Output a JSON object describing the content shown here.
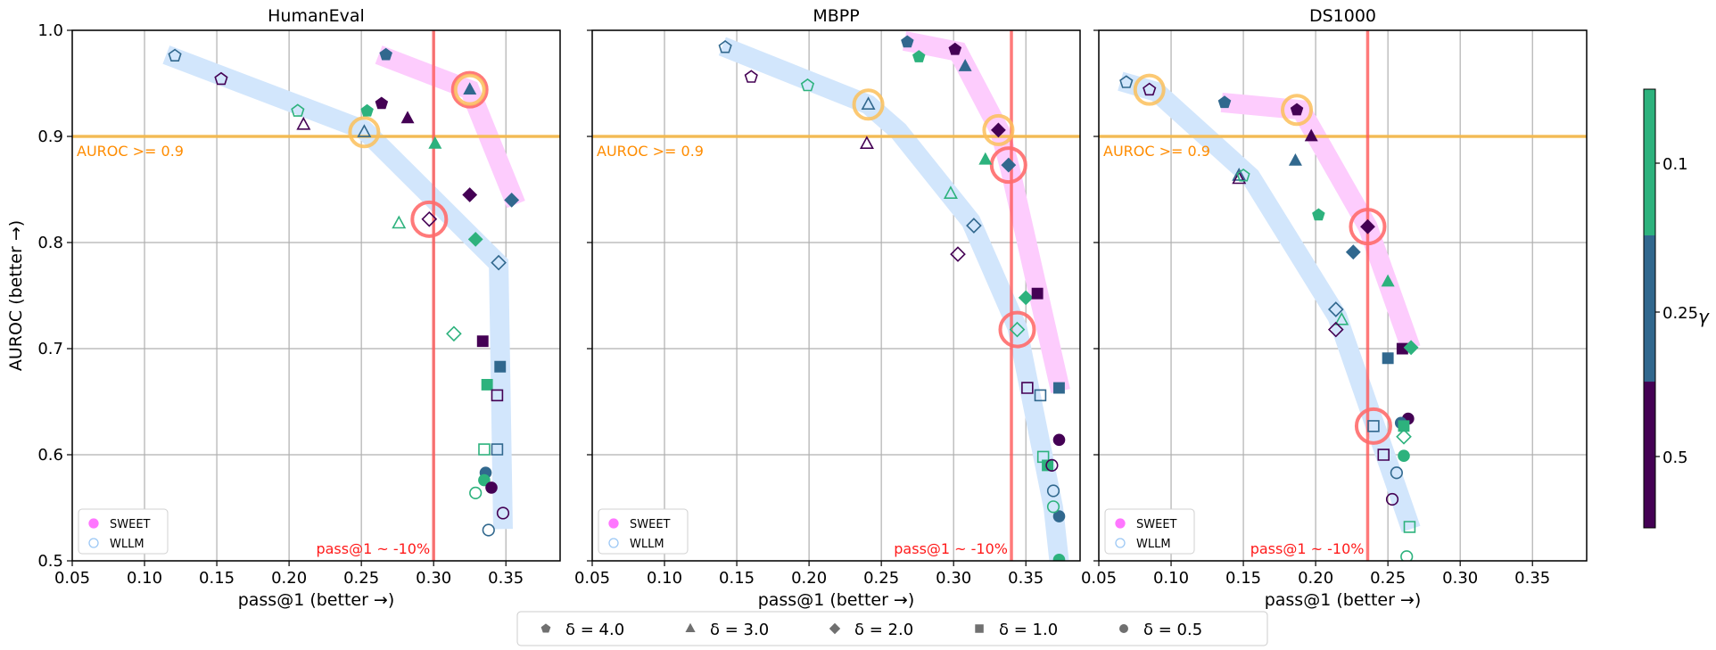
{
  "chart_data": {
    "type": "scatter",
    "ylabel": "AUROC (better →)",
    "xlabel": "pass@1 (better →)",
    "xlim": [
      0.05,
      0.3875
    ],
    "ylim": [
      0.5,
      1.0
    ],
    "xticks": [
      "0.05",
      "0.10",
      "0.15",
      "0.20",
      "0.25",
      "0.30",
      "0.35"
    ],
    "yticks": [
      "0.5",
      "0.6",
      "0.7",
      "0.8",
      "0.9",
      "1.0"
    ],
    "grid": true,
    "threshold_label": "AUROC >= 0.9",
    "threshold_y": 0.9,
    "pass_label": "pass@1 ~ -10%",
    "methods": [
      {
        "name": "SWEET",
        "filled": true,
        "band_color": "#fdccfd",
        "legend_color": "#ff55ff"
      },
      {
        "name": "WLLM",
        "filled": false,
        "band_color": "#d2e6fc",
        "legend_color": "#9cc8f5"
      }
    ],
    "gamma_colors": {
      "0.1": "#2db27d",
      "0.25": "#31688e",
      "0.5": "#440154"
    },
    "colorbar": {
      "label": "γ",
      "ticks": [
        "0.1",
        "0.25",
        "0.5"
      ],
      "colors": [
        "#2db27d",
        "#31688e",
        "#440154"
      ]
    },
    "delta_legend": [
      {
        "delta": 4,
        "marker": "pentagon",
        "label": "δ = 4.0"
      },
      {
        "delta": 3,
        "marker": "triangle",
        "label": "δ = 3.0"
      },
      {
        "delta": 2,
        "marker": "diamond",
        "label": "δ = 2.0"
      },
      {
        "delta": 1,
        "marker": "square",
        "label": "δ = 1.0"
      },
      {
        "delta": 0.5,
        "marker": "circle",
        "label": "δ = 0.5"
      }
    ],
    "panels": [
      {
        "title": "HumanEval",
        "pass_threshold_x": 0.3,
        "bands": {
          "SWEET": [
            [
              0.262,
              0.977
            ],
            [
              0.325,
              0.944
            ],
            [
              0.357,
              0.836
            ]
          ],
          "WLLM": [
            [
              0.115,
              0.977
            ],
            [
              0.252,
              0.906
            ],
            [
              0.345,
              0.78
            ],
            [
              0.348,
              0.53
            ]
          ]
        },
        "highlights": [
          {
            "x": 0.325,
            "y": 0.944,
            "color": "red"
          },
          {
            "x": 0.325,
            "y": 0.944,
            "color": "orange"
          },
          {
            "x": 0.252,
            "y": 0.904,
            "color": "orange"
          },
          {
            "x": 0.297,
            "y": 0.822,
            "color": "red"
          }
        ],
        "points": [
          {
            "m": "SWEET",
            "d": 4,
            "g": 0.25,
            "x": 0.267,
            "y": 0.977
          },
          {
            "m": "SWEET",
            "d": 4,
            "g": 0.5,
            "x": 0.264,
            "y": 0.931
          },
          {
            "m": "SWEET",
            "d": 4,
            "g": 0.1,
            "x": 0.254,
            "y": 0.924
          },
          {
            "m": "SWEET",
            "d": 3,
            "g": 0.5,
            "x": 0.282,
            "y": 0.917
          },
          {
            "m": "SWEET",
            "d": 3,
            "g": 0.25,
            "x": 0.325,
            "y": 0.944
          },
          {
            "m": "SWEET",
            "d": 3,
            "g": 0.1,
            "x": 0.301,
            "y": 0.893
          },
          {
            "m": "SWEET",
            "d": 2,
            "g": 0.5,
            "x": 0.325,
            "y": 0.845
          },
          {
            "m": "SWEET",
            "d": 2,
            "g": 0.1,
            "x": 0.329,
            "y": 0.803
          },
          {
            "m": "SWEET",
            "d": 2,
            "g": 0.25,
            "x": 0.354,
            "y": 0.84
          },
          {
            "m": "SWEET",
            "d": 1,
            "g": 0.5,
            "x": 0.334,
            "y": 0.707
          },
          {
            "m": "SWEET",
            "d": 1,
            "g": 0.1,
            "x": 0.337,
            "y": 0.666
          },
          {
            "m": "SWEET",
            "d": 1,
            "g": 0.25,
            "x": 0.346,
            "y": 0.683
          },
          {
            "m": "SWEET",
            "d": 0.5,
            "g": 0.25,
            "x": 0.336,
            "y": 0.583
          },
          {
            "m": "SWEET",
            "d": 0.5,
            "g": 0.1,
            "x": 0.335,
            "y": 0.576
          },
          {
            "m": "SWEET",
            "d": 0.5,
            "g": 0.5,
            "x": 0.34,
            "y": 0.569
          },
          {
            "m": "WLLM",
            "d": 4,
            "g": 0.25,
            "x": 0.121,
            "y": 0.976
          },
          {
            "m": "WLLM",
            "d": 4,
            "g": 0.5,
            "x": 0.153,
            "y": 0.954
          },
          {
            "m": "WLLM",
            "d": 4,
            "g": 0.1,
            "x": 0.206,
            "y": 0.924
          },
          {
            "m": "WLLM",
            "d": 3,
            "g": 0.5,
            "x": 0.21,
            "y": 0.911
          },
          {
            "m": "WLLM",
            "d": 3,
            "g": 0.25,
            "x": 0.252,
            "y": 0.904
          },
          {
            "m": "WLLM",
            "d": 3,
            "g": 0.1,
            "x": 0.276,
            "y": 0.818
          },
          {
            "m": "WLLM",
            "d": 2,
            "g": 0.5,
            "x": 0.297,
            "y": 0.822
          },
          {
            "m": "WLLM",
            "d": 2,
            "g": 0.1,
            "x": 0.314,
            "y": 0.714
          },
          {
            "m": "WLLM",
            "d": 2,
            "g": 0.25,
            "x": 0.345,
            "y": 0.781
          },
          {
            "m": "WLLM",
            "d": 1,
            "g": 0.5,
            "x": 0.344,
            "y": 0.656
          },
          {
            "m": "WLLM",
            "d": 1,
            "g": 0.1,
            "x": 0.335,
            "y": 0.605
          },
          {
            "m": "WLLM",
            "d": 1,
            "g": 0.25,
            "x": 0.344,
            "y": 0.605
          },
          {
            "m": "WLLM",
            "d": 0.5,
            "g": 0.1,
            "x": 0.329,
            "y": 0.564
          },
          {
            "m": "WLLM",
            "d": 0.5,
            "g": 0.25,
            "x": 0.338,
            "y": 0.529
          },
          {
            "m": "WLLM",
            "d": 0.5,
            "g": 0.5,
            "x": 0.348,
            "y": 0.545
          }
        ]
      },
      {
        "title": "MBPP",
        "pass_threshold_x": 0.34,
        "bands": {
          "SWEET": [
            [
              0.266,
              0.99
            ],
            [
              0.303,
              0.98
            ],
            [
              0.332,
              0.905
            ],
            [
              0.339,
              0.87
            ],
            [
              0.374,
              0.66
            ]
          ],
          "WLLM": [
            [
              0.14,
              0.985
            ],
            [
              0.241,
              0.93
            ],
            [
              0.262,
              0.905
            ],
            [
              0.312,
              0.82
            ],
            [
              0.344,
              0.72
            ],
            [
              0.369,
              0.55
            ],
            [
              0.373,
              0.5
            ]
          ]
        },
        "highlights": [
          {
            "x": 0.241,
            "y": 0.93,
            "color": "orange"
          },
          {
            "x": 0.331,
            "y": 0.906,
            "color": "orange"
          },
          {
            "x": 0.338,
            "y": 0.873,
            "color": "red"
          },
          {
            "x": 0.344,
            "y": 0.718,
            "color": "red"
          }
        ],
        "points": [
          {
            "m": "SWEET",
            "d": 4,
            "g": 0.25,
            "x": 0.268,
            "y": 0.989
          },
          {
            "m": "SWEET",
            "d": 4,
            "g": 0.1,
            "x": 0.276,
            "y": 0.975
          },
          {
            "m": "SWEET",
            "d": 4,
            "g": 0.5,
            "x": 0.301,
            "y": 0.982
          },
          {
            "m": "SWEET",
            "d": 3,
            "g": 0.25,
            "x": 0.308,
            "y": 0.966
          },
          {
            "m": "SWEET",
            "d": 3,
            "g": 0.1,
            "x": 0.322,
            "y": 0.878
          },
          {
            "m": "SWEET",
            "d": 2,
            "g": 0.5,
            "x": 0.331,
            "y": 0.906
          },
          {
            "m": "SWEET",
            "d": 2,
            "g": 0.25,
            "x": 0.338,
            "y": 0.873
          },
          {
            "m": "SWEET",
            "d": 2,
            "g": 0.1,
            "x": 0.35,
            "y": 0.748
          },
          {
            "m": "SWEET",
            "d": 1,
            "g": 0.5,
            "x": 0.358,
            "y": 0.752
          },
          {
            "m": "SWEET",
            "d": 1,
            "g": 0.25,
            "x": 0.373,
            "y": 0.663
          },
          {
            "m": "SWEET",
            "d": 1,
            "g": 0.1,
            "x": 0.365,
            "y": 0.59
          },
          {
            "m": "SWEET",
            "d": 0.5,
            "g": 0.5,
            "x": 0.373,
            "y": 0.614
          },
          {
            "m": "SWEET",
            "d": 0.5,
            "g": 0.25,
            "x": 0.373,
            "y": 0.542
          },
          {
            "m": "SWEET",
            "d": 0.5,
            "g": 0.1,
            "x": 0.373,
            "y": 0.501
          },
          {
            "m": "WLLM",
            "d": 4,
            "g": 0.25,
            "x": 0.142,
            "y": 0.984
          },
          {
            "m": "WLLM",
            "d": 4,
            "g": 0.5,
            "x": 0.16,
            "y": 0.956
          },
          {
            "m": "WLLM",
            "d": 4,
            "g": 0.1,
            "x": 0.199,
            "y": 0.948
          },
          {
            "m": "WLLM",
            "d": 3,
            "g": 0.25,
            "x": 0.241,
            "y": 0.93
          },
          {
            "m": "WLLM",
            "d": 3,
            "g": 0.5,
            "x": 0.24,
            "y": 0.893
          },
          {
            "m": "WLLM",
            "d": 3,
            "g": 0.1,
            "x": 0.298,
            "y": 0.846
          },
          {
            "m": "WLLM",
            "d": 2,
            "g": 0.5,
            "x": 0.303,
            "y": 0.789
          },
          {
            "m": "WLLM",
            "d": 2,
            "g": 0.25,
            "x": 0.314,
            "y": 0.816
          },
          {
            "m": "WLLM",
            "d": 2,
            "g": 0.1,
            "x": 0.344,
            "y": 0.718
          },
          {
            "m": "WLLM",
            "d": 1,
            "g": 0.5,
            "x": 0.351,
            "y": 0.663
          },
          {
            "m": "WLLM",
            "d": 1,
            "g": 0.25,
            "x": 0.36,
            "y": 0.656
          },
          {
            "m": "WLLM",
            "d": 1,
            "g": 0.1,
            "x": 0.362,
            "y": 0.598
          },
          {
            "m": "WLLM",
            "d": 0.5,
            "g": 0.5,
            "x": 0.368,
            "y": 0.59
          },
          {
            "m": "WLLM",
            "d": 0.5,
            "g": 0.25,
            "x": 0.369,
            "y": 0.566
          },
          {
            "m": "WLLM",
            "d": 0.5,
            "g": 0.1,
            "x": 0.369,
            "y": 0.551
          }
        ]
      },
      {
        "title": "DS1000",
        "pass_threshold_x": 0.236,
        "bands": {
          "SWEET": [
            [
              0.135,
              0.932
            ],
            [
              0.19,
              0.925
            ],
            [
              0.236,
              0.815
            ],
            [
              0.266,
              0.7
            ]
          ],
          "WLLM": [
            [
              0.065,
              0.952
            ],
            [
              0.09,
              0.942
            ],
            [
              0.155,
              0.862
            ],
            [
              0.215,
              0.73
            ],
            [
              0.266,
              0.53
            ]
          ]
        },
        "highlights": [
          {
            "x": 0.085,
            "y": 0.944,
            "color": "orange"
          },
          {
            "x": 0.187,
            "y": 0.925,
            "color": "orange"
          },
          {
            "x": 0.236,
            "y": 0.815,
            "color": "red"
          },
          {
            "x": 0.24,
            "y": 0.627,
            "color": "red"
          }
        ],
        "points": [
          {
            "m": "SWEET",
            "d": 4,
            "g": 0.25,
            "x": 0.137,
            "y": 0.932
          },
          {
            "m": "SWEET",
            "d": 4,
            "g": 0.5,
            "x": 0.187,
            "y": 0.925
          },
          {
            "m": "SWEET",
            "d": 3,
            "g": 0.5,
            "x": 0.197,
            "y": 0.9
          },
          {
            "m": "SWEET",
            "d": 3,
            "g": 0.25,
            "x": 0.186,
            "y": 0.877
          },
          {
            "m": "SWEET",
            "d": 4,
            "g": 0.1,
            "x": 0.202,
            "y": 0.826
          },
          {
            "m": "SWEET",
            "d": 2,
            "g": 0.5,
            "x": 0.236,
            "y": 0.815
          },
          {
            "m": "SWEET",
            "d": 2,
            "g": 0.25,
            "x": 0.226,
            "y": 0.791
          },
          {
            "m": "SWEET",
            "d": 3,
            "g": 0.1,
            "x": 0.25,
            "y": 0.763
          },
          {
            "m": "SWEET",
            "d": 1,
            "g": 0.5,
            "x": 0.26,
            "y": 0.7
          },
          {
            "m": "SWEET",
            "d": 2,
            "g": 0.1,
            "x": 0.266,
            "y": 0.701
          },
          {
            "m": "SWEET",
            "d": 1,
            "g": 0.25,
            "x": 0.25,
            "y": 0.691
          },
          {
            "m": "SWEET",
            "d": 0.5,
            "g": 0.5,
            "x": 0.264,
            "y": 0.634
          },
          {
            "m": "SWEET",
            "d": 0.5,
            "g": 0.25,
            "x": 0.259,
            "y": 0.63
          },
          {
            "m": "SWEET",
            "d": 1,
            "g": 0.1,
            "x": 0.261,
            "y": 0.627
          },
          {
            "m": "SWEET",
            "d": 0.5,
            "g": 0.1,
            "x": 0.261,
            "y": 0.599
          },
          {
            "m": "WLLM",
            "d": 4,
            "g": 0.25,
            "x": 0.069,
            "y": 0.951
          },
          {
            "m": "WLLM",
            "d": 4,
            "g": 0.5,
            "x": 0.085,
            "y": 0.944
          },
          {
            "m": "WLLM",
            "d": 3,
            "g": 0.25,
            "x": 0.147,
            "y": 0.863
          },
          {
            "m": "WLLM",
            "d": 3,
            "g": 0.5,
            "x": 0.147,
            "y": 0.86
          },
          {
            "m": "WLLM",
            "d": 4,
            "g": 0.1,
            "x": 0.15,
            "y": 0.863
          },
          {
            "m": "WLLM",
            "d": 2,
            "g": 0.25,
            "x": 0.214,
            "y": 0.737
          },
          {
            "m": "WLLM",
            "d": 3,
            "g": 0.1,
            "x": 0.218,
            "y": 0.727
          },
          {
            "m": "WLLM",
            "d": 2,
            "g": 0.5,
            "x": 0.214,
            "y": 0.718
          },
          {
            "m": "WLLM",
            "d": 1,
            "g": 0.25,
            "x": 0.24,
            "y": 0.627
          },
          {
            "m": "WLLM",
            "d": 2,
            "g": 0.1,
            "x": 0.261,
            "y": 0.617
          },
          {
            "m": "WLLM",
            "d": 1,
            "g": 0.5,
            "x": 0.247,
            "y": 0.6
          },
          {
            "m": "WLLM",
            "d": 0.5,
            "g": 0.25,
            "x": 0.256,
            "y": 0.583
          },
          {
            "m": "WLLM",
            "d": 0.5,
            "g": 0.5,
            "x": 0.253,
            "y": 0.558
          },
          {
            "m": "WLLM",
            "d": 1,
            "g": 0.1,
            "x": 0.265,
            "y": 0.532
          },
          {
            "m": "WLLM",
            "d": 0.5,
            "g": 0.1,
            "x": 0.263,
            "y": 0.504
          }
        ]
      }
    ]
  }
}
